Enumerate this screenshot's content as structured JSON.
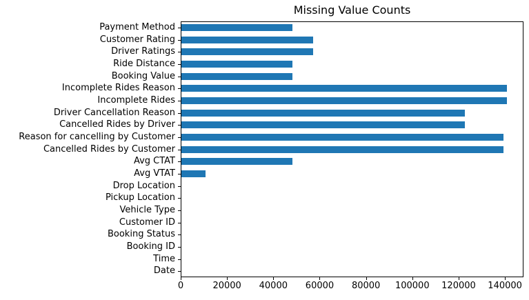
{
  "chart_data": {
    "type": "bar",
    "orientation": "horizontal",
    "title": "Missing Value Counts",
    "categories": [
      "Payment Method",
      "Customer Rating",
      "Driver Ratings",
      "Ride Distance",
      "Booking Value",
      "Incomplete Rides Reason",
      "Incomplete Rides",
      "Driver Cancellation Reason",
      "Cancelled Rides by Driver",
      "Reason for cancelling by Customer",
      "Cancelled Rides by Customer",
      "Avg CTAT",
      "Avg VTAT",
      "Drop Location",
      "Pickup Location",
      "Vehicle Type",
      "Customer ID",
      "Booking Status",
      "Booking ID",
      "Time",
      "Date"
    ],
    "values": [
      48000,
      57000,
      57000,
      48000,
      48000,
      141000,
      141000,
      123000,
      123000,
      139500,
      139500,
      48000,
      10500,
      0,
      0,
      0,
      0,
      0,
      0,
      0,
      0
    ],
    "order": "top-to-bottom",
    "xlabel": "",
    "ylabel": "",
    "xlim": [
      0,
      148000
    ],
    "x_ticks": [
      0,
      20000,
      40000,
      60000,
      80000,
      100000,
      120000,
      140000
    ],
    "grid": false,
    "legend": null,
    "bar_color": "#1f77b4",
    "background_color": "#ffffff",
    "axis_color": "#000000"
  }
}
